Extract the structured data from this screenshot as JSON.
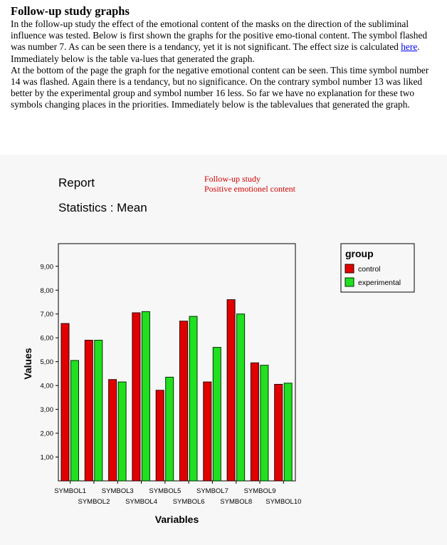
{
  "article": {
    "heading": "Follow-up study graphs",
    "paragraph1_before_link": "In the follow-up study the effect of the emotional content of the masks on the direction of the subliminal influence was tested. Below is first shown the graphs for the positive emo-tional content. The symbol flashed was number 7. As can be seen there is a tendancy, yet it is not significant. The effect size is calculated ",
    "link_text": "here",
    "paragraph1_after_link": ". Immediately below is the table va-lues that generated the graph.",
    "paragraph2": "At the bottom of the page the graph for the negative emotional content can be seen. This time symbol number 14 was flashed. Again there is a tendancy, but no significance. On the contrary symbol number 13 was liked better by the experimental group and symbol number 16 less. So far we have no explanation for these two symbols changing places in the priorities. Immediately below is the tablevalues that generated the graph."
  },
  "report": {
    "title": "Report",
    "subtitle": "Statistics : Mean",
    "note_line1": "Follow-up study",
    "note_line2": "Positive emotionel content"
  },
  "colors": {
    "control": "#e00000",
    "experimental": "#20e020",
    "note": "#d00000"
  },
  "chart_data": {
    "type": "bar",
    "categories": [
      "SYMBOL1",
      "SYMBOL2",
      "SYMBOL3",
      "SYMBOL4",
      "SYMBOL5",
      "SYMBOL6",
      "SYMBOL7",
      "SYMBOL8",
      "SYMBOL9",
      "SYMBOL10"
    ],
    "series": [
      {
        "name": "control",
        "values": [
          6.6,
          5.9,
          4.25,
          7.05,
          3.8,
          6.7,
          4.15,
          7.6,
          4.95,
          4.05
        ]
      },
      {
        "name": "experimental",
        "values": [
          5.05,
          5.9,
          4.15,
          7.1,
          4.35,
          6.9,
          5.6,
          7.0,
          4.85,
          4.1
        ]
      }
    ],
    "xlabel": "Variables",
    "ylabel": "Values",
    "yticks": [
      "1,00",
      "2,00",
      "3,00",
      "4,00",
      "5,00",
      "6,00",
      "7,00",
      "8,00",
      "9,00"
    ],
    "ylim": [
      0,
      9.95
    ],
    "legend_title": "group",
    "legend_position": "top-right",
    "grid": false
  }
}
